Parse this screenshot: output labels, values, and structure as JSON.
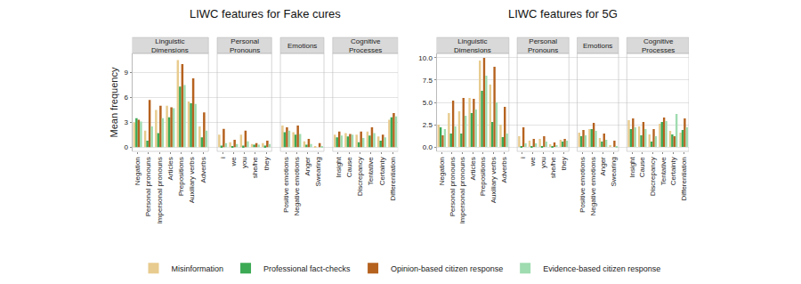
{
  "chart_data": [
    {
      "type": "bar",
      "title": "LIWC features for Fake cures",
      "ylabel": "Mean frequency",
      "panels": [
        {
          "label": "Linguistic Dimensions",
          "categories": [
            "Negation",
            "Personal pronouns",
            "Impersonal pronouns",
            "Articles",
            "Prepositions",
            "Auxiliary verbs",
            "Adverbs"
          ]
        },
        {
          "label": "Personal Pronouns",
          "categories": [
            "i",
            "we",
            "you",
            "she/he",
            "they"
          ]
        },
        {
          "label": "Emotions",
          "categories": [
            "Positive emotions",
            "Negative emotions",
            "Anger",
            "Swearing"
          ]
        },
        {
          "label": "Cognitive Processes",
          "categories": [
            "Insight",
            "Cause",
            "Discrepancy",
            "Tentative",
            "Certainty",
            "Differentiation"
          ]
        }
      ],
      "series": [
        {
          "name": "Misinformation",
          "color": "#e8cb8e",
          "values": [
            3.0,
            2.0,
            4.5,
            5.0,
            10.5,
            5.5,
            2.5,
            1.5,
            0.6,
            1.5,
            0.4,
            0.5,
            2.6,
            1.8,
            0.7,
            0.1,
            1.5,
            1.7,
            1.5,
            1.9,
            1.3,
            3.3
          ]
        },
        {
          "name": "Professional fact-checks",
          "color": "#3caa55",
          "values": [
            3.5,
            0.8,
            1.7,
            3.6,
            7.3,
            5.3,
            1.2,
            0.2,
            0.1,
            0.2,
            0.3,
            0.2,
            1.8,
            1.5,
            0.3,
            0.0,
            1.2,
            1.3,
            0.6,
            1.4,
            0.8,
            3.6
          ]
        },
        {
          "name": "Opinion-based citizen response",
          "color": "#b5621f",
          "values": [
            3.3,
            5.7,
            5.0,
            4.8,
            10.0,
            8.3,
            4.2,
            2.2,
            0.9,
            2.0,
            0.5,
            0.8,
            2.4,
            2.6,
            1.0,
            0.5,
            1.9,
            1.6,
            1.9,
            2.4,
            1.5,
            4.1
          ]
        },
        {
          "name": "Evidence-based citizen response",
          "color": "#9fdcb0",
          "values": [
            3.1,
            2.5,
            3.5,
            4.7,
            7.5,
            5.2,
            2.0,
            0.5,
            0.4,
            0.7,
            0.3,
            0.4,
            2.0,
            1.6,
            0.4,
            0.1,
            1.4,
            1.5,
            1.1,
            1.7,
            1.2,
            3.7
          ]
        }
      ],
      "ylim": [
        -0.5,
        11.3
      ],
      "yticks": [
        0,
        3,
        6,
        9
      ],
      "grid": true,
      "legend": "bottom"
    },
    {
      "type": "bar",
      "title": "LIWC features for 5G",
      "panels": [
        {
          "label": "Linguistic Dimensions",
          "categories": [
            "Negation",
            "Personal pronouns",
            "Impersonal pronouns",
            "Articles",
            "Prepositions",
            "Auxiliary verbs",
            "Adverbs"
          ]
        },
        {
          "label": "Personal Pronouns",
          "categories": [
            "i",
            "we",
            "you",
            "she/he",
            "they"
          ]
        },
        {
          "label": "Emotions",
          "categories": [
            "Positive emotions",
            "Negative emotions",
            "Anger",
            "Swearing"
          ]
        },
        {
          "label": "Cognitive Processes",
          "categories": [
            "Insight",
            "Cause",
            "Discrepancy",
            "Tentative",
            "Certainty",
            "Differentiation"
          ]
        }
      ],
      "series": [
        {
          "name": "Misinformation",
          "color": "#e8cb8e",
          "values": [
            2.5,
            3.8,
            4.0,
            5.5,
            9.7,
            7.0,
            2.5,
            1.2,
            0.7,
            0.9,
            0.3,
            0.8,
            1.6,
            2.0,
            1.0,
            0.2,
            3.0,
            2.3,
            1.4,
            2.6,
            1.8,
            1.6
          ]
        },
        {
          "name": "Professional fact-checks",
          "color": "#3caa55",
          "values": [
            2.2,
            1.5,
            1.5,
            3.8,
            6.3,
            2.8,
            1.1,
            0.1,
            0.1,
            0.1,
            0.1,
            0.6,
            1.2,
            2.0,
            0.6,
            0.0,
            2.0,
            1.3,
            0.6,
            2.8,
            1.4,
            1.9
          ]
        },
        {
          "name": "Opinion-based citizen response",
          "color": "#b5621f",
          "values": [
            1.3,
            5.2,
            5.5,
            5.4,
            10.0,
            9.0,
            4.5,
            2.2,
            0.9,
            1.2,
            0.5,
            0.9,
            1.9,
            2.7,
            1.5,
            0.7,
            3.2,
            2.8,
            2.0,
            3.3,
            1.2,
            3.2
          ]
        },
        {
          "name": "Evidence-based citizen response",
          "color": "#9fdcb0",
          "values": [
            2.0,
            2.3,
            3.5,
            4.2,
            8.0,
            5.0,
            1.5,
            0.4,
            0.4,
            0.6,
            0.2,
            0.7,
            1.3,
            1.8,
            0.8,
            0.1,
            2.2,
            2.0,
            1.2,
            2.9,
            3.7,
            2.2
          ]
        }
      ],
      "ylim": [
        -0.5,
        10.5
      ],
      "yticks": [
        {
          "value": 0,
          "label": "0.0"
        },
        {
          "value": 2.5,
          "label": "2.5"
        },
        {
          "value": 5,
          "label": "5.0"
        },
        {
          "value": 7.5,
          "label": "7.5"
        },
        {
          "value": 10,
          "label": "10.0"
        }
      ],
      "grid": true,
      "legend": "bottom"
    }
  ]
}
